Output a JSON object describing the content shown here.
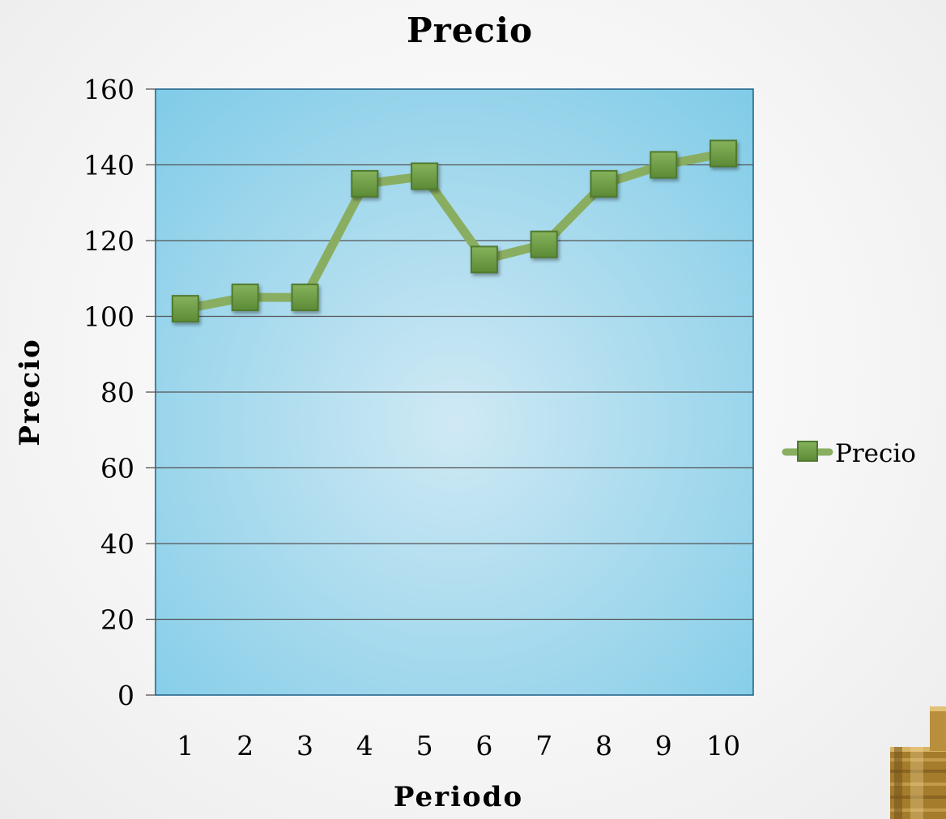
{
  "chart_data": {
    "type": "line",
    "title": "Precio",
    "xlabel": "Periodo",
    "ylabel": "Precio",
    "categories": [
      "1",
      "2",
      "3",
      "4",
      "5",
      "6",
      "7",
      "8",
      "9",
      "10"
    ],
    "series": [
      {
        "name": "Precio",
        "values": [
          102,
          105,
          105,
          135,
          137,
          115,
          119,
          135,
          140,
          143
        ]
      }
    ],
    "ylim": [
      0,
      160
    ],
    "yticks": [
      "0",
      "20",
      "40",
      "60",
      "80",
      "100",
      "120",
      "140",
      "160"
    ],
    "grid": true,
    "legend_position": "right",
    "colors": {
      "plot_bg_center": "#cfe9f4",
      "plot_bg_edge": "#7fcbe7",
      "line": "#8aae61",
      "marker": "#6f9a45",
      "marker_border": "#4f7a2f",
      "gridline": "#555555",
      "plot_border": "#1c5f86"
    }
  }
}
